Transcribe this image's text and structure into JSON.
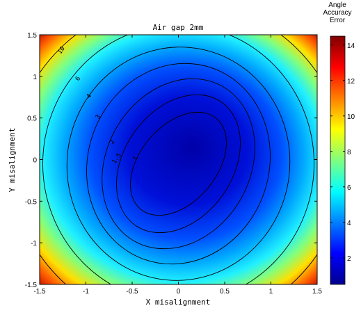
{
  "chart_data": {
    "type": "heatmap",
    "title": "Air gap 2mm",
    "xlabel": "X misalignment",
    "ylabel": "Y misalignment",
    "xlim": [
      -1.5,
      1.5
    ],
    "ylim": [
      -1.5,
      1.5
    ],
    "x_ticks": [
      "-1.5",
      "-1",
      "-0.5",
      "0",
      "0.5",
      "1",
      "1.5"
    ],
    "y_ticks": [
      "1.5",
      "1",
      "0.5",
      "0",
      "-0.5",
      "-1",
      "-1.5"
    ],
    "colorbar": {
      "label_lines": [
        "Angle",
        "Accuracy",
        "Error"
      ],
      "range": [
        0.5,
        14.5
      ],
      "ticks": [
        "14",
        "12",
        "10",
        "8",
        "6",
        "4",
        "2"
      ],
      "colormap": "jet"
    },
    "surface": {
      "description_values": "error minimum ~0.5 near center, rising to ~14.5 in corners",
      "center_value": 0.5,
      "corner_value": 14.5
    },
    "contour_labels": [
      "10",
      "6",
      "4",
      "3",
      "2",
      "1.5",
      "1"
    ]
  }
}
